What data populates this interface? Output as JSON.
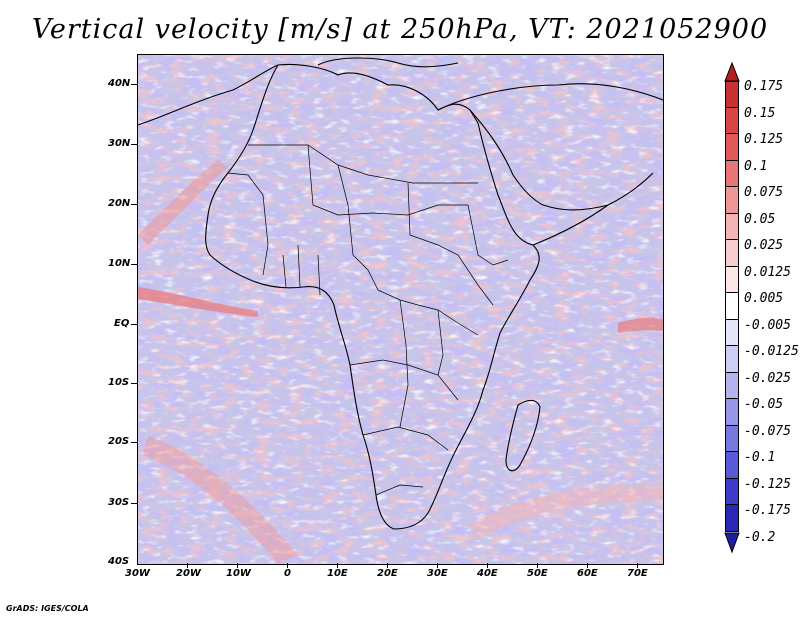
{
  "title": "Vertical velocity [m/s] at 250hPa, VT: 2021052900",
  "credit": "GrADS: IGES/COLA",
  "map": {
    "lat_labels": [
      "40N",
      "30N",
      "20N",
      "10N",
      "EQ",
      "10S",
      "20S",
      "30S",
      "40S"
    ],
    "lat_values": [
      40,
      30,
      20,
      10,
      0,
      -10,
      -20,
      -30,
      -40
    ],
    "lon_labels": [
      "30W",
      "20W",
      "10W",
      "0",
      "10E",
      "20E",
      "30E",
      "40E",
      "50E",
      "60E",
      "70E"
    ],
    "lon_values": [
      -30,
      -20,
      -10,
      0,
      10,
      20,
      30,
      40,
      50,
      60,
      70
    ],
    "lat_range": [
      -40,
      44
    ],
    "lon_range": [
      -30,
      75
    ]
  },
  "colorbar": {
    "labels": [
      "0.175",
      "0.15",
      "0.125",
      "0.1",
      "0.075",
      "0.05",
      "0.025",
      "0.0125",
      "0.005",
      "-0.005",
      "-0.0125",
      "-0.025",
      "-0.05",
      "-0.075",
      "-0.1",
      "-0.125",
      "-0.175",
      "-0.2"
    ],
    "colors": [
      "#b41e1e",
      "#c83232",
      "#d74646",
      "#e15a5a",
      "#e87878",
      "#ef9696",
      "#f5b4b4",
      "#f9cdcd",
      "#fce6e6",
      "#ffffff",
      "#e6e6fa",
      "#cdcdf5",
      "#b4b4f0",
      "#9696eb",
      "#7878e1",
      "#5a5ad7",
      "#3c3cc8",
      "#2828b4",
      "#1e1ea0"
    ]
  },
  "colors": {
    "base": "#c6c5ea",
    "red_band": "#ee9c9c",
    "blue_band": "#8a86e0",
    "coast": "#000000"
  }
}
